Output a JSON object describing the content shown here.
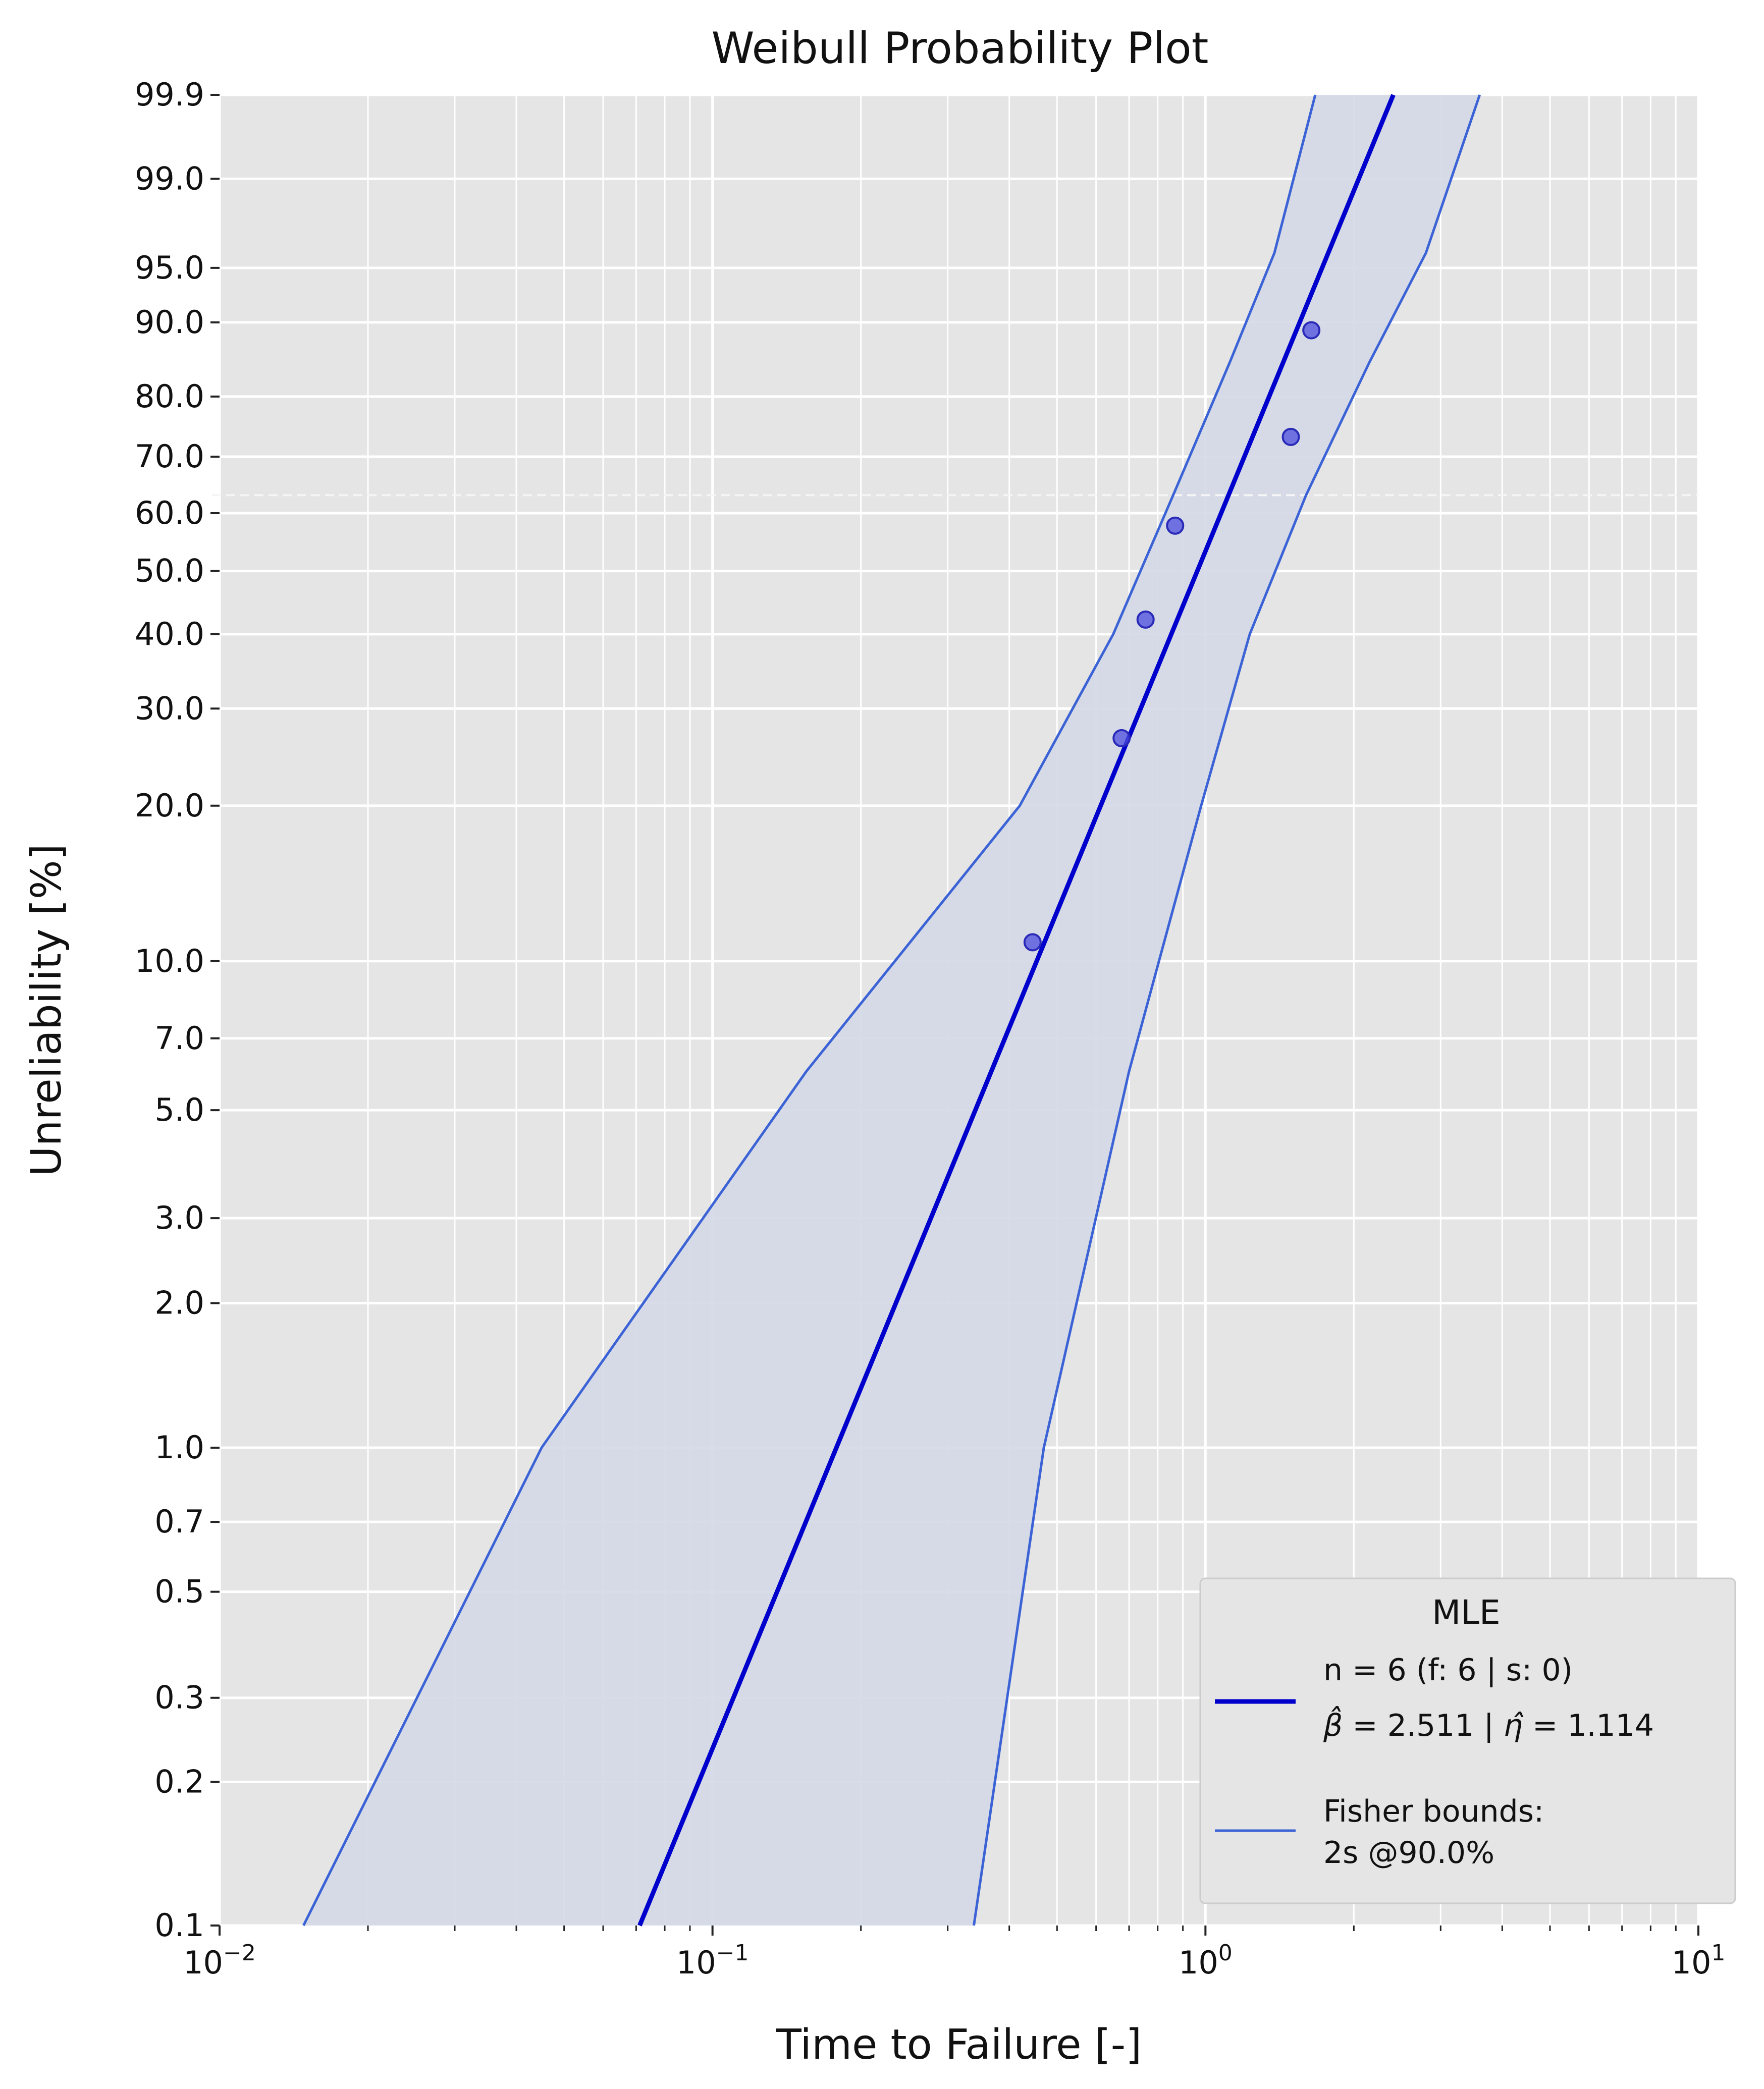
{
  "chart_data": {
    "type": "line",
    "title": "Weibull Probability Plot",
    "xlabel": "Time to Failure [-]",
    "ylabel": "Unreliability [%]",
    "x_scale": "log",
    "y_scale": "weibull",
    "xlim": [
      0.01,
      10
    ],
    "ylim": [
      0.1,
      99.9
    ],
    "grid": true,
    "x_ticks": [
      {
        "value": 0.01,
        "base": "10",
        "exp": "−2"
      },
      {
        "value": 0.1,
        "base": "10",
        "exp": "−1"
      },
      {
        "value": 1,
        "base": "10",
        "exp": "0"
      },
      {
        "value": 10,
        "base": "10",
        "exp": "1"
      }
    ],
    "y_ticks": [
      {
        "value": 0.1,
        "label": "0.1"
      },
      {
        "value": 0.2,
        "label": "0.2"
      },
      {
        "value": 0.3,
        "label": "0.3"
      },
      {
        "value": 0.5,
        "label": "0.5"
      },
      {
        "value": 0.7,
        "label": "0.7"
      },
      {
        "value": 1.0,
        "label": "1.0"
      },
      {
        "value": 2.0,
        "label": "2.0"
      },
      {
        "value": 3.0,
        "label": "3.0"
      },
      {
        "value": 5.0,
        "label": "5.0"
      },
      {
        "value": 7.0,
        "label": "7.0"
      },
      {
        "value": 10.0,
        "label": "10.0"
      },
      {
        "value": 20.0,
        "label": "20.0"
      },
      {
        "value": 30.0,
        "label": "30.0"
      },
      {
        "value": 40.0,
        "label": "40.0"
      },
      {
        "value": 50.0,
        "label": "50.0"
      },
      {
        "value": 60.0,
        "label": "60.0"
      },
      {
        "value": 70.0,
        "label": "70.0"
      },
      {
        "value": 80.0,
        "label": "80.0"
      },
      {
        "value": 90.0,
        "label": "90.0"
      },
      {
        "value": 95.0,
        "label": "95.0"
      },
      {
        "value": 99.0,
        "label": "99.0"
      },
      {
        "value": 99.9,
        "label": "99.9"
      }
    ],
    "reference_line": {
      "y": 63.2,
      "style": "dashed"
    },
    "fit": {
      "beta": 2.511,
      "eta": 1.114
    },
    "points": [
      {
        "x": 0.446,
        "y": 10.9
      },
      {
        "x": 0.676,
        "y": 26.6
      },
      {
        "x": 0.756,
        "y": 42.2
      },
      {
        "x": 0.868,
        "y": 57.8
      },
      {
        "x": 1.49,
        "y": 73.4
      },
      {
        "x": 1.64,
        "y": 89.1
      }
    ],
    "bounds": {
      "lower": [
        {
          "x": 0.339,
          "y": 0.1
        },
        {
          "x": 0.47,
          "y": 1.0
        },
        {
          "x": 0.7,
          "y": 6.0
        },
        {
          "x": 0.98,
          "y": 20.0
        },
        {
          "x": 1.23,
          "y": 40.0
        },
        {
          "x": 1.6,
          "y": 63.2
        },
        {
          "x": 2.15,
          "y": 85.0
        },
        {
          "x": 2.8,
          "y": 96.0
        },
        {
          "x": 3.6,
          "y": 99.9
        }
      ],
      "upper": [
        {
          "x": 0.0148,
          "y": 0.1
        },
        {
          "x": 0.045,
          "y": 1.0
        },
        {
          "x": 0.155,
          "y": 6.0
        },
        {
          "x": 0.42,
          "y": 20.0
        },
        {
          "x": 0.65,
          "y": 40.0
        },
        {
          "x": 0.86,
          "y": 63.2
        },
        {
          "x": 1.12,
          "y": 85.0
        },
        {
          "x": 1.38,
          "y": 96.0
        },
        {
          "x": 1.67,
          "y": 99.9
        }
      ]
    },
    "colors": {
      "background": "#e5e5e5",
      "grid": "#ffffff",
      "fit_line": "#0000cc",
      "bounds_line": "#3c63d6",
      "fill": "#d3d8e5",
      "points": "#4d4ddd"
    },
    "legend": {
      "position": "bottom-right",
      "title": "MLE",
      "fit_line1": "n = 6 (f: 6 | s: 0)",
      "beta_value": "2.511",
      "eta_value": "1.114",
      "bounds_line1": "Fisher bounds:",
      "bounds_line2": "2s @90.0%"
    }
  }
}
